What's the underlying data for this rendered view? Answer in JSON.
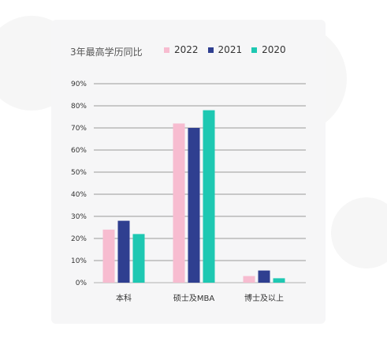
{
  "chart_data": {
    "type": "bar",
    "title": "3年最高学历同比",
    "categories": [
      "本科",
      "硕士及MBA",
      "博士及以上"
    ],
    "series": [
      {
        "name": "2022",
        "color": "#f7bcd0",
        "values": [
          24,
          72,
          3
        ]
      },
      {
        "name": "2021",
        "color": "#2f3f90",
        "values": [
          28,
          70,
          5.5
        ]
      },
      {
        "name": "2020",
        "color": "#1ec8b2",
        "values": [
          22,
          78,
          2
        ]
      }
    ],
    "ylim": [
      0,
      90
    ],
    "yticks": [
      "0%",
      "10%",
      "20%",
      "30%",
      "40%",
      "50%",
      "60%",
      "70%",
      "80%",
      "90%"
    ],
    "grid": true,
    "legend_position": "top-right"
  }
}
